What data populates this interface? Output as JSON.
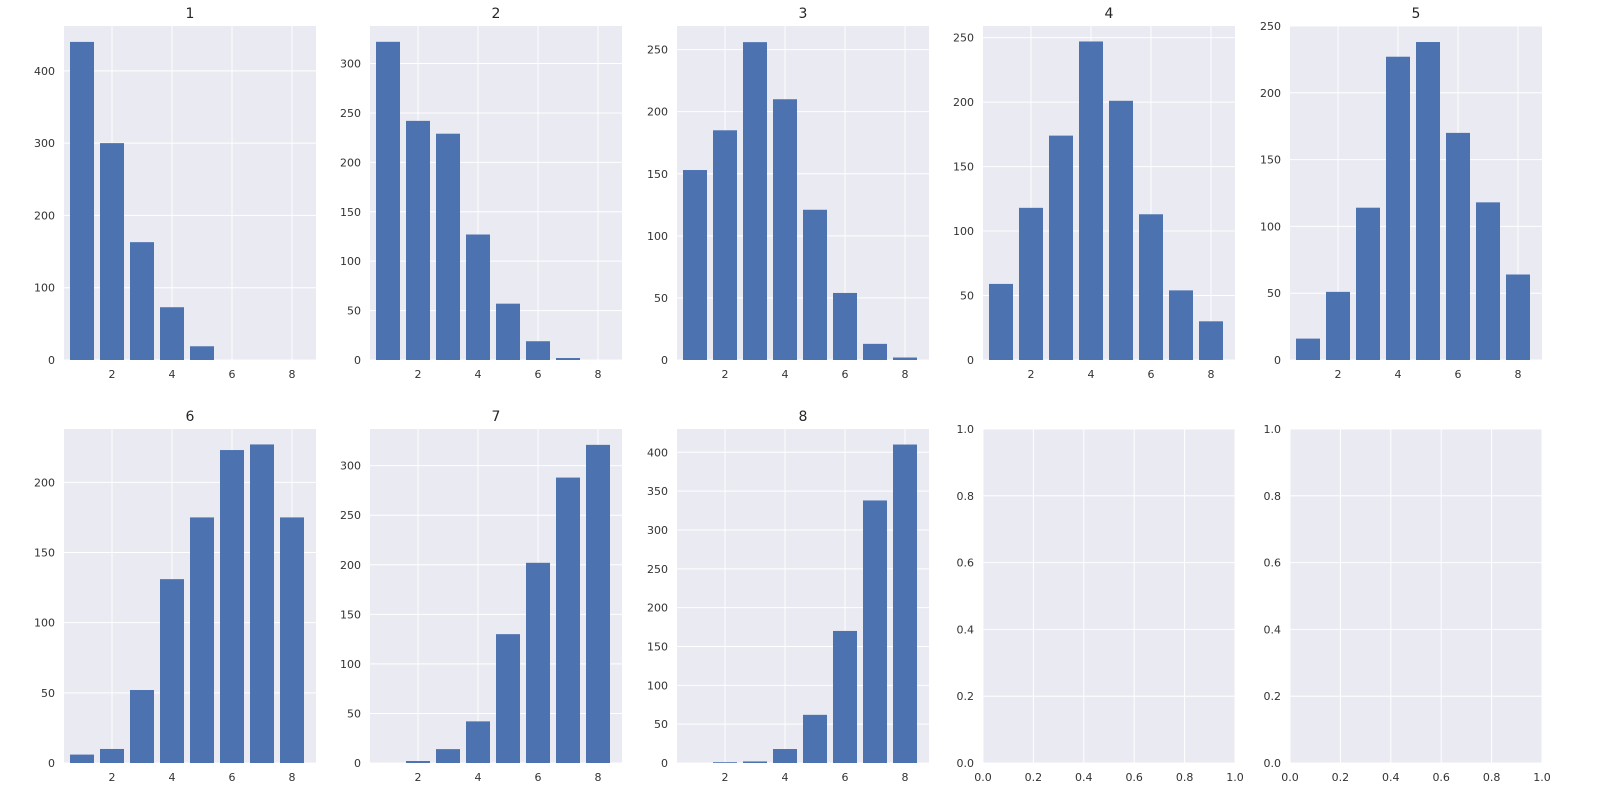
{
  "colors": {
    "panel_background": "#eaeaf2",
    "grid": "#ffffff",
    "bar": "#4c72b0",
    "text": "#333333"
  },
  "chart_data": [
    {
      "type": "bar",
      "title": "1",
      "x": [
        1,
        2,
        3,
        4,
        5,
        6,
        7,
        8
      ],
      "values": [
        440,
        300,
        163,
        73,
        19,
        0,
        0,
        0
      ],
      "xlim": [
        0.4,
        8.8
      ],
      "ylim": [
        0,
        462
      ],
      "xticks": [
        2,
        4,
        6,
        8
      ],
      "yticks": [
        0,
        100,
        200,
        300,
        400
      ],
      "grid": true
    },
    {
      "type": "bar",
      "title": "2",
      "x": [
        1,
        2,
        3,
        4,
        5,
        6,
        7,
        8
      ],
      "values": [
        322,
        242,
        229,
        127,
        57,
        19,
        2,
        0
      ],
      "xlim": [
        0.4,
        8.8
      ],
      "ylim": [
        0,
        338
      ],
      "xticks": [
        2,
        4,
        6,
        8
      ],
      "yticks": [
        0,
        50,
        100,
        150,
        200,
        250,
        300
      ],
      "grid": true
    },
    {
      "type": "bar",
      "title": "3",
      "x": [
        1,
        2,
        3,
        4,
        5,
        6,
        7,
        8
      ],
      "values": [
        153,
        185,
        256,
        210,
        121,
        54,
        13,
        2
      ],
      "xlim": [
        0.4,
        8.8
      ],
      "ylim": [
        0,
        269
      ],
      "xticks": [
        2,
        4,
        6,
        8
      ],
      "yticks": [
        0,
        50,
        100,
        150,
        200,
        250
      ],
      "grid": true
    },
    {
      "type": "bar",
      "title": "4",
      "x": [
        1,
        2,
        3,
        4,
        5,
        6,
        7,
        8
      ],
      "values": [
        59,
        118,
        174,
        247,
        201,
        113,
        54,
        30
      ],
      "xlim": [
        0.4,
        8.8
      ],
      "ylim": [
        0,
        259
      ],
      "xticks": [
        2,
        4,
        6,
        8
      ],
      "yticks": [
        0,
        50,
        100,
        150,
        200,
        250
      ],
      "grid": true
    },
    {
      "type": "bar",
      "title": "5",
      "x": [
        1,
        2,
        3,
        4,
        5,
        6,
        7,
        8
      ],
      "values": [
        16,
        51,
        114,
        227,
        238,
        170,
        118,
        64
      ],
      "xlim": [
        0.4,
        8.8
      ],
      "ylim": [
        0,
        250
      ],
      "xticks": [
        2,
        4,
        6,
        8
      ],
      "yticks": [
        0,
        50,
        100,
        150,
        200,
        250
      ],
      "grid": true
    },
    {
      "type": "bar",
      "title": "6",
      "x": [
        1,
        2,
        3,
        4,
        5,
        6,
        7,
        8
      ],
      "values": [
        6,
        10,
        52,
        131,
        175,
        223,
        227,
        175
      ],
      "xlim": [
        0.4,
        8.8
      ],
      "ylim": [
        0,
        238
      ],
      "xticks": [
        2,
        4,
        6,
        8
      ],
      "yticks": [
        0,
        50,
        100,
        150,
        200
      ],
      "grid": true
    },
    {
      "type": "bar",
      "title": "7",
      "x": [
        1,
        2,
        3,
        4,
        5,
        6,
        7,
        8
      ],
      "values": [
        0,
        2,
        14,
        42,
        130,
        202,
        288,
        321
      ],
      "xlim": [
        0.4,
        8.8
      ],
      "ylim": [
        0,
        337
      ],
      "xticks": [
        2,
        4,
        6,
        8
      ],
      "yticks": [
        0,
        50,
        100,
        150,
        200,
        250,
        300
      ],
      "grid": true
    },
    {
      "type": "bar",
      "title": "8",
      "x": [
        1,
        2,
        3,
        4,
        5,
        6,
        7,
        8
      ],
      "values": [
        0,
        1,
        2,
        18,
        62,
        170,
        338,
        410
      ],
      "xlim": [
        0.4,
        8.8
      ],
      "ylim": [
        0,
        430
      ],
      "xticks": [
        2,
        4,
        6,
        8
      ],
      "yticks": [
        0,
        50,
        100,
        150,
        200,
        250,
        300,
        350,
        400
      ],
      "grid": true
    },
    {
      "type": "bar",
      "title": "",
      "x": [],
      "values": [],
      "xlim": [
        0,
        1
      ],
      "ylim": [
        0,
        1
      ],
      "xticks": [
        0.0,
        0.2,
        0.4,
        0.6,
        0.8,
        1.0
      ],
      "yticks": [
        0.0,
        0.2,
        0.4,
        0.6,
        0.8,
        1.0
      ],
      "tick_format": "1dp",
      "grid": true
    },
    {
      "type": "bar",
      "title": "",
      "x": [],
      "values": [],
      "xlim": [
        0,
        1
      ],
      "ylim": [
        0,
        1
      ],
      "xticks": [
        0.0,
        0.2,
        0.4,
        0.6,
        0.8,
        1.0
      ],
      "yticks": [
        0.0,
        0.2,
        0.4,
        0.6,
        0.8,
        1.0
      ],
      "tick_format": "1dp",
      "grid": true
    }
  ]
}
